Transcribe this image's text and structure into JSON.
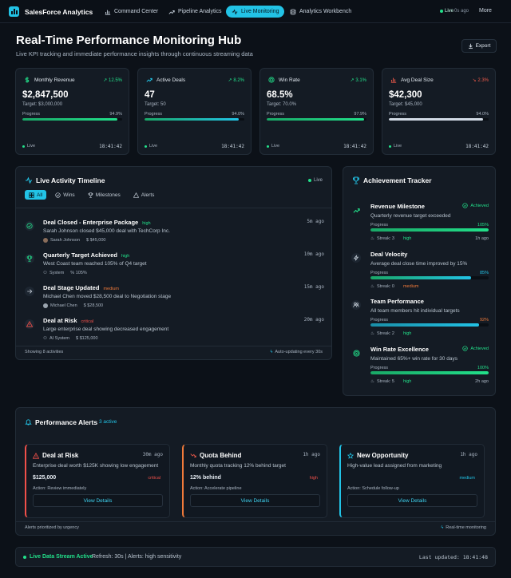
{
  "nav": {
    "brand": "SalesForce Analytics",
    "items": [
      {
        "label": "Command Center"
      },
      {
        "label": "Pipeline Analytics"
      },
      {
        "label": "Live Monitoring"
      },
      {
        "label": "Analytics Workbench"
      }
    ],
    "live_label": "Live",
    "live_ago": "0s ago",
    "more_label": "More"
  },
  "header": {
    "title": "Real-Time Performance Monitoring Hub",
    "subtitle": "Live KPI tracking and immediate performance insights through continuous streaming data",
    "export_label": "Export"
  },
  "kpis": [
    {
      "label": "Monthly Revenue",
      "change": "12.5%",
      "value": "$2,847,500",
      "target": "Target: $3,000,000",
      "progress_label": "Progress",
      "progress": "94.9%",
      "live": "Live",
      "time": "18:41:42"
    },
    {
      "label": "Active Deals",
      "change": "8.2%",
      "value": "47",
      "target": "Target: 50",
      "progress_label": "Progress",
      "progress": "94.0%",
      "live": "Live",
      "time": "18:41:42"
    },
    {
      "label": "Win Rate",
      "change": "3.1%",
      "value": "68.5%",
      "target": "Target: 70.0%",
      "progress_label": "Progress",
      "progress": "97.9%",
      "live": "Live",
      "time": "18:41:42"
    },
    {
      "label": "Avg Deal Size",
      "change": "2.3%",
      "value": "$42,300",
      "target": "Target: $45,000",
      "progress_label": "Progress",
      "progress": "94.0%",
      "live": "Live",
      "time": "18:41:42"
    }
  ],
  "kpi_fill": [
    0.949,
    0.94,
    0.979,
    0.94
  ],
  "activity": {
    "title": "Live Activity Timeline",
    "live": "Live",
    "tabs": [
      "All",
      "Wins",
      "Milestones",
      "Alerts"
    ],
    "events": [
      {
        "title": "Deal Closed - Enterprise Package",
        "priority": "high",
        "ago": "5m ago",
        "desc": "Sarah Johnson closed $45,000 deal with TechCorp Inc.",
        "person": "Sarah Johnson",
        "metric": "$45,000"
      },
      {
        "title": "Quarterly Target Achieved",
        "priority": "high",
        "ago": "10m ago",
        "desc": "West Coast team reached 105% of Q4 target",
        "person": "System",
        "metric": "105%"
      },
      {
        "title": "Deal Stage Updated",
        "priority": "medium",
        "ago": "15m ago",
        "desc": "Michael Chen moved $28,500 deal to Negotiation stage",
        "person": "Michael Chen",
        "metric": "$28,500"
      },
      {
        "title": "Deal at Risk",
        "priority": "critical",
        "ago": "20m ago",
        "desc": "Large enterprise deal showing decreased engagement",
        "person": "AI System",
        "metric": "$125,000"
      }
    ],
    "footer_left": "Showing 8 activities",
    "footer_right": "Auto-updating every 30s"
  },
  "achievements": {
    "title": "Achievement Tracker",
    "items": [
      {
        "title": "Revenue Milestone",
        "badge": "Achieved",
        "desc": "Quarterly revenue target exceeded",
        "progress_label": "Progress",
        "progress": "105%",
        "streak": "Streak: 3",
        "level": "high",
        "time": "1h ago"
      },
      {
        "title": "Deal Velocity",
        "badge": "",
        "desc": "Average deal close time improved by 15%",
        "progress_label": "Progress",
        "progress": "85%",
        "streak": "Streak: 0",
        "level": "medium",
        "time": ""
      },
      {
        "title": "Team Performance",
        "badge": "",
        "desc": "All team members hit individual targets",
        "progress_label": "Progress",
        "progress": "92%",
        "streak": "Streak: 2",
        "level": "high",
        "time": ""
      },
      {
        "title": "Win Rate Excellence",
        "badge": "Achieved",
        "desc": "Maintained 65%+ win rate for 30 days",
        "progress_label": "Progress",
        "progress": "100%",
        "streak": "Streak: 5",
        "level": "high",
        "time": "2h ago"
      }
    ],
    "fill": [
      1.0,
      0.85,
      0.92,
      1.0
    ]
  },
  "alerts": {
    "title": "Performance Alerts",
    "count": "3 active",
    "cards": [
      {
        "title": "Deal at Risk",
        "ago": "30m ago",
        "desc": "Enterprise deal worth $125K showing low engagement",
        "amount": "$125,000",
        "level": "critical",
        "action": "Action: Review immediately",
        "button": "View Details"
      },
      {
        "title": "Quota Behind",
        "ago": "1h ago",
        "desc": "Monthly quota tracking 12% behind target",
        "amount": "12% behind",
        "level": "high",
        "action": "Action: Accelerate pipeline",
        "button": "View Details"
      },
      {
        "title": "New Opportunity",
        "ago": "1h ago",
        "desc": "High-value lead assigned from marketing",
        "amount": "",
        "level": "medium",
        "action": "Action: Schedule follow-up",
        "button": "View Details"
      }
    ],
    "footer_left": "Alerts prioritized by urgency",
    "footer_right": "Real-time monitoring"
  },
  "stream": {
    "status": "Live Data Stream Active",
    "info": "Refresh: 30s | Alerts: high sensitivity",
    "updated": "Last updated: 18:41:48"
  },
  "colors": {
    "accent": "#22c3e6",
    "green": "#22e08a",
    "red": "#f0504a",
    "orange": "#f07a3a",
    "bg": "#0c1118",
    "card": "#141b24"
  }
}
